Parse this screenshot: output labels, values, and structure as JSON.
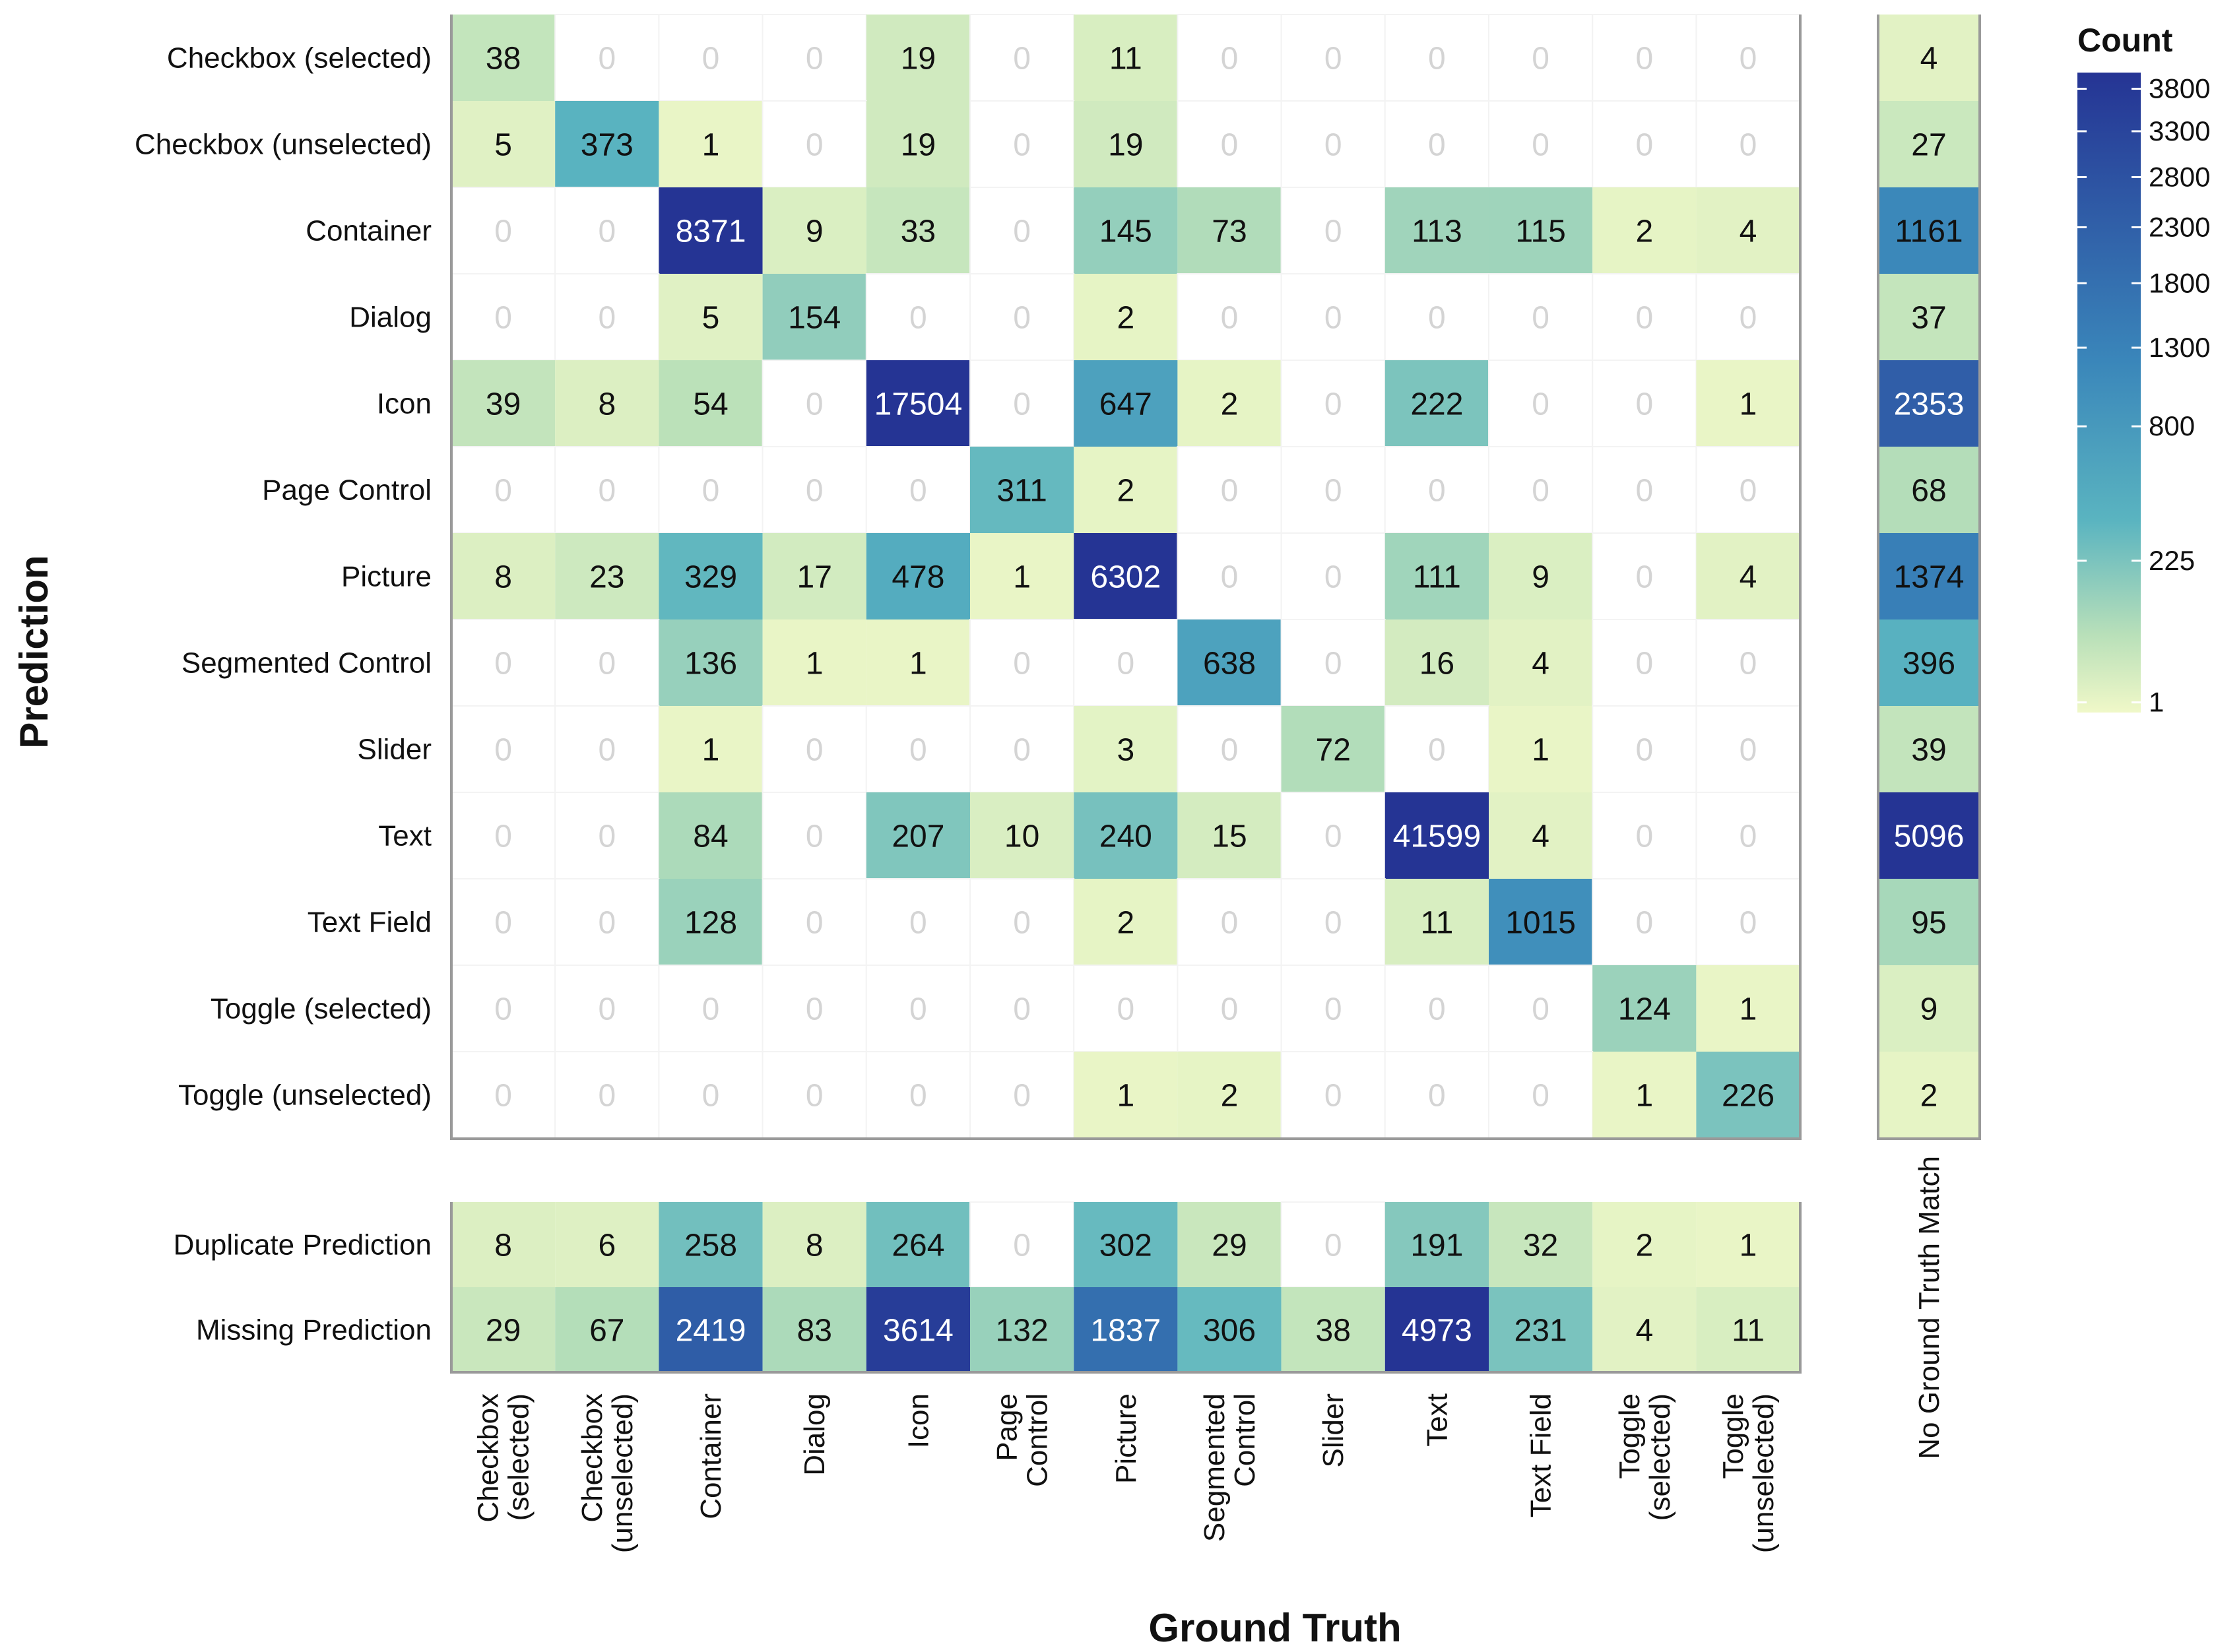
{
  "chart_data": {
    "type": "heatmap",
    "xlabel": "Ground Truth",
    "ylabel": "Prediction",
    "x_categories": [
      "Checkbox (selected)",
      "Checkbox (unselected)",
      "Container",
      "Dialog",
      "Icon",
      "Page Control",
      "Picture",
      "Segmented Control",
      "Slider",
      "Text",
      "Text Field",
      "Toggle (selected)",
      "Toggle (unselected)"
    ],
    "x_tick_labels": [
      [
        "Checkbox",
        "(selected)"
      ],
      [
        "Checkbox",
        "(unselected)"
      ],
      [
        "Container"
      ],
      [
        "Dialog"
      ],
      [
        "Icon"
      ],
      [
        "Page",
        "Control"
      ],
      [
        "Picture"
      ],
      [
        "Segmented",
        "Control"
      ],
      [
        "Slider"
      ],
      [
        "Text"
      ],
      [
        "Text Field"
      ],
      [
        "Toggle",
        "(selected)"
      ],
      [
        "Toggle",
        "(unselected)"
      ]
    ],
    "y_categories": [
      "Checkbox (selected)",
      "Checkbox (unselected)",
      "Container",
      "Dialog",
      "Icon",
      "Page Control",
      "Picture",
      "Segmented Control",
      "Slider",
      "Text",
      "Text Field",
      "Toggle (selected)",
      "Toggle (unselected)"
    ],
    "values": [
      [
        38,
        0,
        0,
        0,
        19,
        0,
        11,
        0,
        0,
        0,
        0,
        0,
        0
      ],
      [
        5,
        373,
        1,
        0,
        19,
        0,
        19,
        0,
        0,
        0,
        0,
        0,
        0
      ],
      [
        0,
        0,
        8371,
        9,
        33,
        0,
        145,
        73,
        0,
        113,
        115,
        2,
        4
      ],
      [
        0,
        0,
        5,
        154,
        0,
        0,
        2,
        0,
        0,
        0,
        0,
        0,
        0
      ],
      [
        39,
        8,
        54,
        0,
        17504,
        0,
        647,
        2,
        0,
        222,
        0,
        0,
        1
      ],
      [
        0,
        0,
        0,
        0,
        0,
        311,
        2,
        0,
        0,
        0,
        0,
        0,
        0
      ],
      [
        8,
        23,
        329,
        17,
        478,
        1,
        6302,
        0,
        0,
        111,
        9,
        0,
        4
      ],
      [
        0,
        0,
        136,
        1,
        1,
        0,
        0,
        638,
        0,
        16,
        4,
        0,
        0
      ],
      [
        0,
        0,
        1,
        0,
        0,
        0,
        3,
        0,
        72,
        0,
        1,
        0,
        0
      ],
      [
        0,
        0,
        84,
        0,
        207,
        10,
        240,
        15,
        0,
        41599,
        4,
        0,
        0
      ],
      [
        0,
        0,
        128,
        0,
        0,
        0,
        2,
        0,
        0,
        11,
        1015,
        0,
        0
      ],
      [
        0,
        0,
        0,
        0,
        0,
        0,
        0,
        0,
        0,
        0,
        0,
        124,
        1
      ],
      [
        0,
        0,
        0,
        0,
        0,
        0,
        1,
        2,
        0,
        0,
        0,
        1,
        226
      ]
    ],
    "extra_column": {
      "label": "No Ground Truth Match",
      "values": [
        4,
        27,
        1161,
        37,
        2353,
        68,
        1374,
        396,
        39,
        5096,
        95,
        9,
        2
      ]
    },
    "extra_rows": [
      {
        "label": "Duplicate Prediction",
        "values": [
          8,
          6,
          258,
          8,
          264,
          0,
          302,
          29,
          0,
          191,
          32,
          2,
          1
        ]
      },
      {
        "label": "Missing Prediction",
        "values": [
          29,
          67,
          2419,
          83,
          3614,
          132,
          1837,
          306,
          38,
          4973,
          231,
          4,
          11
        ]
      }
    ],
    "colorbar": {
      "title": "Count",
      "ticks": [
        1,
        225,
        800,
        1300,
        1800,
        2300,
        2800,
        3300,
        3800
      ],
      "range": [
        1,
        4000
      ],
      "scale": "sqrt"
    },
    "colors": {
      "low": "#f0f8c8",
      "mid1": "#b9e0b9",
      "mid2": "#5ab4c0",
      "mid3": "#3a86ba",
      "high": "#253494",
      "zero_text": "#d4d4d4",
      "dark_text": "#111111",
      "light_text": "#ffffff"
    }
  }
}
